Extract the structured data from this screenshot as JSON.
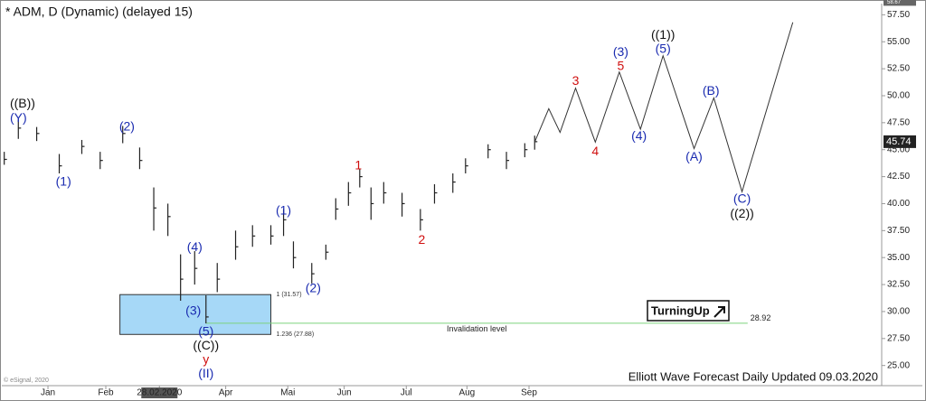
{
  "chart_data": {
    "type": "hlc",
    "title": "* ADM, D (Dynamic) (delayed 15)",
    "footer": "Elliott Wave Forecast Daily Updated 09.03.2020",
    "copyright": "© eSignal, 2020",
    "logo": "TurningUp",
    "xlim": [
      0,
      62.5
    ],
    "ylim": [
      23.3,
      58.2
    ],
    "xticks": [
      {
        "value": 3.4,
        "label": "Jan"
      },
      {
        "value": 7.5,
        "label": "Feb"
      },
      {
        "value": 11.3,
        "label": "28.02.2020"
      },
      {
        "value": 16,
        "label": "Apr"
      },
      {
        "value": 20.4,
        "label": "Mai"
      },
      {
        "value": 24.4,
        "label": "Jun"
      },
      {
        "value": 28.8,
        "label": "Jul"
      },
      {
        "value": 33.1,
        "label": "Aug"
      },
      {
        "value": 37.5,
        "label": "Sep"
      }
    ],
    "yticks": [
      {
        "value": 25,
        "label": "25.00"
      },
      {
        "value": 27.5,
        "label": "27.50"
      },
      {
        "value": 30,
        "label": "30.00"
      },
      {
        "value": 32.5,
        "label": "32.50"
      },
      {
        "value": 35,
        "label": "35.00"
      },
      {
        "value": 37.5,
        "label": "37.50"
      },
      {
        "value": 40,
        "label": "40.00"
      },
      {
        "value": 42.5,
        "label": "42.50"
      },
      {
        "value": 45,
        "label": "45.00"
      },
      {
        "value": 47.5,
        "label": "47.50"
      },
      {
        "value": 50,
        "label": "50.00"
      },
      {
        "value": 52.5,
        "label": "52.50"
      },
      {
        "value": 55,
        "label": "55.00"
      },
      {
        "value": 57.5,
        "label": "57.50"
      }
    ],
    "color": "#222222",
    "x": [
      0.3,
      1.3,
      2.6,
      4.2,
      5.8,
      7.1,
      8.7,
      9.9,
      10.9,
      11.9,
      12.8,
      13.8,
      14.6,
      15.4,
      16.7,
      17.9,
      19.2,
      20.1,
      20.8,
      22.1,
      23.1,
      23.8,
      24.7,
      25.5,
      26.3,
      27.2,
      28.5,
      29.8,
      30.8,
      32.1,
      33.0,
      34.6,
      35.9,
      37.2,
      37.9
    ],
    "high": [
      44.8,
      47.8,
      47.1,
      44.6,
      45.9,
      44.8,
      47.2,
      45.2,
      41.5,
      40.0,
      35.3,
      35.6,
      31.5,
      34.5,
      37.5,
      38.0,
      38.0,
      39.5,
      36.5,
      34.5,
      36.2,
      40.5,
      42.0,
      43.2,
      41.5,
      42.0,
      41.0,
      39.5,
      41.8,
      42.8,
      44.2,
      45.5,
      44.8,
      45.6,
      46.3
    ],
    "low": [
      43.6,
      46.0,
      45.8,
      42.8,
      44.6,
      43.2,
      45.6,
      43.2,
      37.5,
      37.0,
      31.0,
      32.5,
      28.9,
      31.8,
      34.8,
      36.0,
      36.2,
      37.0,
      34.0,
      32.6,
      34.8,
      38.5,
      39.8,
      41.5,
      38.5,
      40.0,
      38.8,
      37.5,
      40.0,
      41.0,
      42.8,
      44.2,
      43.2,
      44.3,
      45.0
    ],
    "close": [
      44.1,
      47.0,
      46.5,
      43.5,
      45.3,
      44.0,
      46.5,
      44.0,
      39.6,
      38.8,
      33.0,
      34.0,
      29.5,
      33.0,
      36.0,
      37.0,
      37.0,
      38.5,
      35.0,
      33.5,
      35.5,
      39.5,
      41.0,
      42.5,
      40.0,
      41.0,
      40.0,
      38.5,
      41.0,
      42.0,
      43.5,
      45.0,
      44.0,
      45.0,
      45.74
    ],
    "last_price": 45.74,
    "top_price": 58.67,
    "projection": {
      "color": "#333333",
      "x": [
        37.9,
        38.9,
        39.7,
        40.8,
        42.2,
        43.9,
        45.4,
        47.0,
        49.2,
        50.6,
        52.6,
        56.2
      ],
      "y": [
        45.7,
        48.8,
        46.6,
        50.7,
        45.7,
        52.2,
        46.9,
        53.7,
        45.1,
        49.8,
        41.1,
        56.8
      ]
    },
    "fib_box": {
      "x": [
        8.5,
        19.2
      ],
      "color": "#a6d8f7",
      "levels": [
        {
          "value": 31.57,
          "label": "1 (31.57)"
        },
        {
          "value": 27.88,
          "label": "1.236 (27.88)"
        }
      ]
    },
    "invalidation": {
      "label": "Invalidation level",
      "value": 28.92,
      "x": [
        14.6,
        53
      ],
      "color": "#7ed37e"
    },
    "annotations": [
      {
        "text": "((B))",
        "x": 1.6,
        "y": 49.2,
        "color": "#111111"
      },
      {
        "text": "(Y)",
        "x": 1.3,
        "y": 47.9,
        "color": "#1a2bb0"
      },
      {
        "text": "(1)",
        "x": 4.5,
        "y": 42.0,
        "color": "#1a2bb0"
      },
      {
        "text": "(2)",
        "x": 9.0,
        "y": 47.1,
        "color": "#1a2bb0"
      },
      {
        "text": "(4)",
        "x": 13.8,
        "y": 35.9,
        "color": "#1a2bb0"
      },
      {
        "text": "(3)",
        "x": 13.7,
        "y": 30.0,
        "color": "#1a2bb0"
      },
      {
        "text": "(5)",
        "x": 14.6,
        "y": 28.1,
        "color": "#1a2bb0"
      },
      {
        "text": "((C))",
        "x": 14.6,
        "y": 26.8,
        "color": "#111111"
      },
      {
        "text": "y",
        "x": 14.6,
        "y": 25.5,
        "color": "#d01010"
      },
      {
        "text": "(II)",
        "x": 14.6,
        "y": 24.2,
        "color": "#1a2bb0"
      },
      {
        "text": "(1)",
        "x": 20.1,
        "y": 39.3,
        "color": "#1a2bb0"
      },
      {
        "text": "(2)",
        "x": 22.2,
        "y": 32.1,
        "color": "#1a2bb0"
      },
      {
        "text": "1",
        "x": 25.4,
        "y": 43.5,
        "color": "#d01010"
      },
      {
        "text": "2",
        "x": 29.9,
        "y": 36.6,
        "color": "#d01010"
      },
      {
        "text": "3",
        "x": 40.8,
        "y": 51.3,
        "color": "#d01010"
      },
      {
        "text": "4",
        "x": 42.2,
        "y": 44.8,
        "color": "#d01010"
      },
      {
        "text": "5",
        "x": 44.0,
        "y": 52.7,
        "color": "#d01010"
      },
      {
        "text": "(3)",
        "x": 44.0,
        "y": 54.0,
        "color": "#1a2bb0"
      },
      {
        "text": "(4)",
        "x": 45.3,
        "y": 46.2,
        "color": "#1a2bb0"
      },
      {
        "text": "(5)",
        "x": 47.0,
        "y": 54.3,
        "color": "#1a2bb0"
      },
      {
        "text": "((1))",
        "x": 47.0,
        "y": 55.6,
        "color": "#111111"
      },
      {
        "text": "(B)",
        "x": 50.4,
        "y": 50.4,
        "color": "#1a2bb0"
      },
      {
        "text": "(A)",
        "x": 49.2,
        "y": 44.3,
        "color": "#1a2bb0"
      },
      {
        "text": "(C)",
        "x": 52.6,
        "y": 40.4,
        "color": "#1a2bb0"
      },
      {
        "text": "((2))",
        "x": 52.6,
        "y": 39.0,
        "color": "#111111"
      }
    ]
  }
}
